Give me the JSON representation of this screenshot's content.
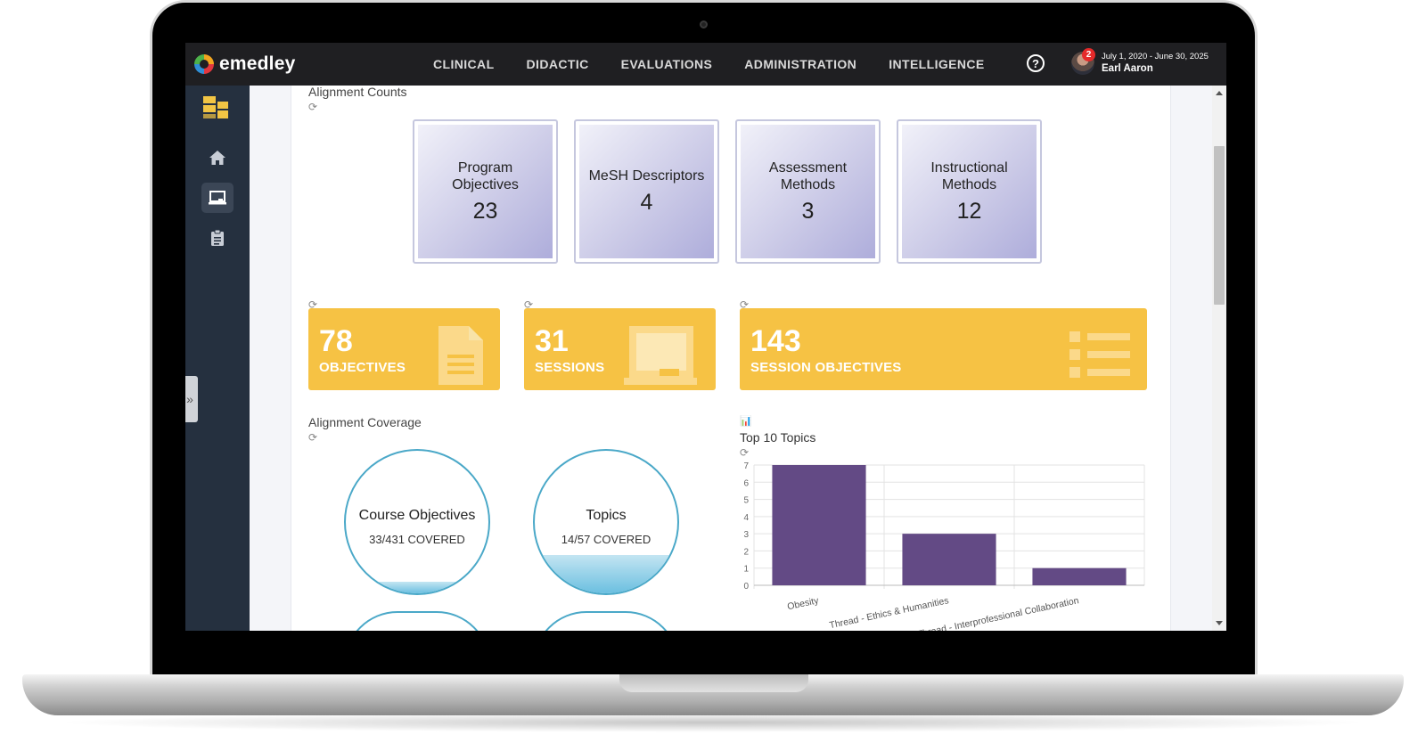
{
  "app": {
    "name": "emedley"
  },
  "nav": {
    "items": [
      "CLINICAL",
      "DIDACTIC",
      "EVALUATIONS",
      "ADMINISTRATION",
      "INTELLIGENCE"
    ]
  },
  "header": {
    "help_icon": "question-circle-icon",
    "notification_count": "2",
    "date_range": "July 1, 2020 - June 30, 2025",
    "user_name": "Earl Aaron"
  },
  "sidebar": {
    "icons": [
      "dashboard-icon",
      "home-icon",
      "classroom-icon",
      "clipboard-icon"
    ],
    "active": "classroom-icon",
    "collapse_glyph": "»"
  },
  "alignment_counts": {
    "title": "Alignment Counts",
    "cards": [
      {
        "label": "Program Objectives",
        "value": "23"
      },
      {
        "label": "MeSH Descriptors",
        "value": "4"
      },
      {
        "label": "Assessment Methods",
        "value": "3"
      },
      {
        "label": "Instructional Methods",
        "value": "12"
      }
    ]
  },
  "stats": [
    {
      "value": "78",
      "label": "OBJECTIVES",
      "icon": "document-icon"
    },
    {
      "value": "31",
      "label": "SESSIONS",
      "icon": "blackboard-icon"
    },
    {
      "value": "143",
      "label": "SESSION OBJECTIVES",
      "icon": "list-icon"
    }
  ],
  "alignment_coverage": {
    "title": "Alignment Coverage",
    "items": [
      {
        "title": "Course Objectives",
        "covered": 33,
        "total": 431,
        "text": "33/431 COVERED"
      },
      {
        "title": "Topics",
        "covered": 14,
        "total": 57,
        "text": "14/57 COVERED"
      }
    ]
  },
  "chart_data": {
    "type": "bar",
    "title": "Top 10 Topics",
    "categories": [
      "Obesity",
      "Thread - Ethics & Humanities",
      "Thread - Interprofessional Collaboration"
    ],
    "values": [
      7,
      3,
      1
    ],
    "ylim": [
      0,
      7
    ],
    "yticks": [
      "0",
      "1",
      "2",
      "3",
      "4",
      "5",
      "6",
      "7"
    ],
    "grid": true,
    "bar_color": "#634a85"
  },
  "colors": {
    "accent_yellow": "#f6c244",
    "topbar": "#1f1f22",
    "sidebar": "#25303f",
    "bar": "#634a85",
    "circle": "#4aa8c8"
  }
}
